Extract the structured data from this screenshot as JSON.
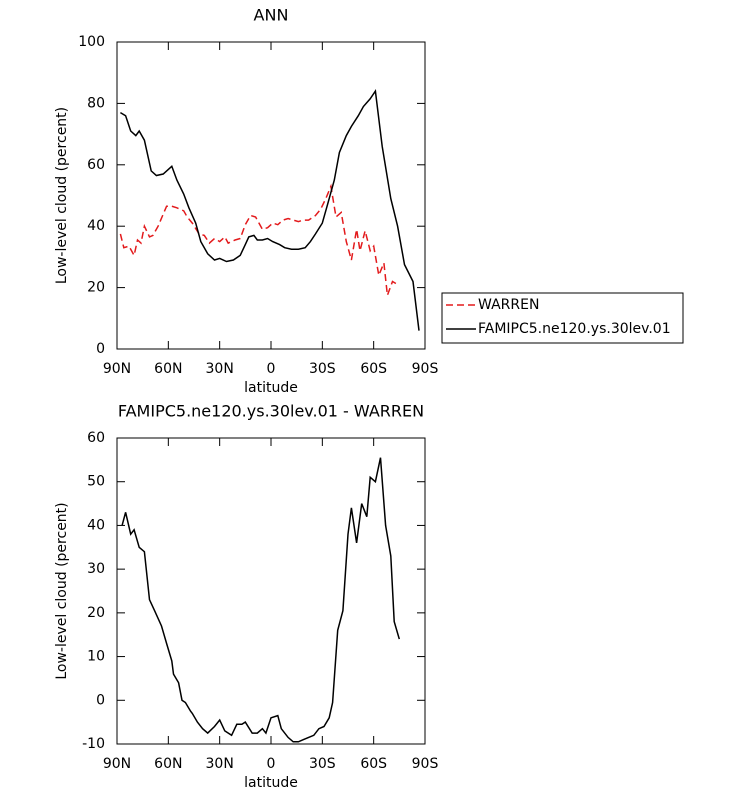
{
  "chart_data": [
    {
      "type": "line",
      "title": "ANN",
      "xlabel": "latitude",
      "ylabel": "Low-level cloud (percent)",
      "xlim": [
        90,
        -90
      ],
      "xticks": [
        {
          "value": 90,
          "label": "90N"
        },
        {
          "value": 60,
          "label": "60N"
        },
        {
          "value": 30,
          "label": "30N"
        },
        0,
        {
          "value": -30,
          "label": "30S"
        },
        {
          "value": -60,
          "label": "60S"
        },
        {
          "value": -90,
          "label": "90S"
        }
      ],
      "ylim": [
        0,
        100
      ],
      "yticks": [
        0,
        20,
        40,
        60,
        80,
        100
      ],
      "legend": "right",
      "series": [
        {
          "name": "WARREN",
          "color": "#e31a1c",
          "dash": true,
          "x": [
            88,
            86,
            83,
            80,
            78,
            76,
            74,
            71,
            69,
            66,
            61,
            58,
            55,
            51,
            49,
            46,
            42,
            39,
            36,
            33,
            30,
            27,
            25,
            21,
            18,
            15,
            12,
            9,
            5,
            2,
            -1,
            -4,
            -7,
            -10,
            -13,
            -16,
            -19,
            -22,
            -26,
            -29,
            -32,
            -35,
            -38,
            -41,
            -44,
            -47,
            -50,
            -52,
            -55,
            -58,
            -60,
            -63,
            -66,
            -68,
            -71,
            -74
          ],
          "values": [
            37.5,
            33,
            33.5,
            30.5,
            35.5,
            34.5,
            40,
            36.5,
            37,
            40,
            46.5,
            46.5,
            46,
            45,
            43,
            41,
            37.5,
            37,
            34.5,
            36,
            35,
            36.5,
            34.5,
            35.5,
            36,
            40.5,
            43.5,
            43,
            39,
            39.5,
            41,
            40.5,
            42,
            42.5,
            42,
            41.5,
            42,
            42,
            43.5,
            45.5,
            49,
            53,
            43,
            44.5,
            35,
            29,
            39,
            32,
            38.5,
            32,
            33.5,
            24,
            28,
            17.5,
            22,
            21
          ]
        },
        {
          "name": "FAMIPC5.ne120.ys.30lev.01",
          "color": "#000000",
          "dash": false,
          "x": [
            88,
            85,
            82,
            79,
            77,
            74,
            70,
            67,
            63,
            58,
            55,
            51,
            48,
            44,
            41,
            37,
            33,
            30,
            26,
            22,
            18,
            15,
            13,
            10,
            8,
            5,
            2,
            -1,
            -5,
            -8,
            -12,
            -16,
            -20,
            -23,
            -26,
            -30,
            -33,
            -37,
            -40,
            -44,
            -47,
            -51,
            -54,
            -58,
            -61,
            -65,
            -70,
            -74,
            -78,
            -83,
            -86.5
          ],
          "values": [
            77,
            76,
            71,
            69.5,
            71,
            68,
            58,
            56.5,
            57,
            59.5,
            55,
            50.5,
            46,
            41,
            35,
            31,
            29,
            29.5,
            28.5,
            29,
            30.5,
            34,
            36.5,
            37,
            35.5,
            35.5,
            36,
            35,
            34,
            33,
            32.5,
            32.5,
            33,
            35,
            37.5,
            41,
            47,
            55,
            64,
            69.5,
            72.5,
            76,
            79,
            81.5,
            84,
            66,
            49,
            40,
            27.5,
            22,
            6
          ]
        }
      ]
    },
    {
      "type": "line",
      "title": "FAMIPC5.ne120.ys.30lev.01 - WARREN",
      "xlabel": "latitude",
      "ylabel": "Low-level cloud (percent)",
      "xlim": [
        90,
        -90
      ],
      "xticks": [
        {
          "value": 90,
          "label": "90N"
        },
        {
          "value": 60,
          "label": "60N"
        },
        {
          "value": 30,
          "label": "30N"
        },
        0,
        {
          "value": -30,
          "label": "30S"
        },
        {
          "value": -60,
          "label": "60S"
        },
        {
          "value": -90,
          "label": "90S"
        }
      ],
      "ylim": [
        -10,
        60
      ],
      "yticks": [
        -10,
        0,
        10,
        20,
        30,
        40,
        50,
        60
      ],
      "series": [
        {
          "color": "#000000",
          "dash": false,
          "x": [
            87,
            85,
            82,
            80,
            77,
            74,
            71,
            68,
            64,
            61,
            58,
            57,
            54,
            52,
            50,
            47,
            46,
            43,
            40,
            37,
            33,
            30,
            27,
            23,
            20,
            17,
            15,
            11,
            8,
            5,
            3,
            0,
            -4,
            -6,
            -10,
            -13,
            -16,
            -19,
            -22,
            -25,
            -28,
            -31,
            -34,
            -36,
            -39,
            -42,
            -45,
            -47,
            -50,
            -53,
            -56,
            -58,
            -61,
            -64,
            -67,
            -70,
            -72,
            -75
          ],
          "values": [
            40,
            43,
            38,
            39,
            35,
            34,
            23,
            20.5,
            17,
            13,
            9,
            6,
            4,
            0,
            -0.5,
            -2.5,
            -3,
            -5,
            -6.5,
            -7.5,
            -6,
            -4.5,
            -7,
            -8,
            -5.5,
            -5.5,
            -5,
            -7.5,
            -7.5,
            -6.5,
            -7.5,
            -4,
            -3.5,
            -6.5,
            -8.5,
            -9.5,
            -9.5,
            -9,
            -8.5,
            -8,
            -6.5,
            -6,
            -4,
            -0.5,
            16,
            20.5,
            38,
            44,
            36,
            45,
            42,
            51,
            50,
            55.5,
            40,
            33,
            18,
            14
          ]
        }
      ]
    }
  ]
}
